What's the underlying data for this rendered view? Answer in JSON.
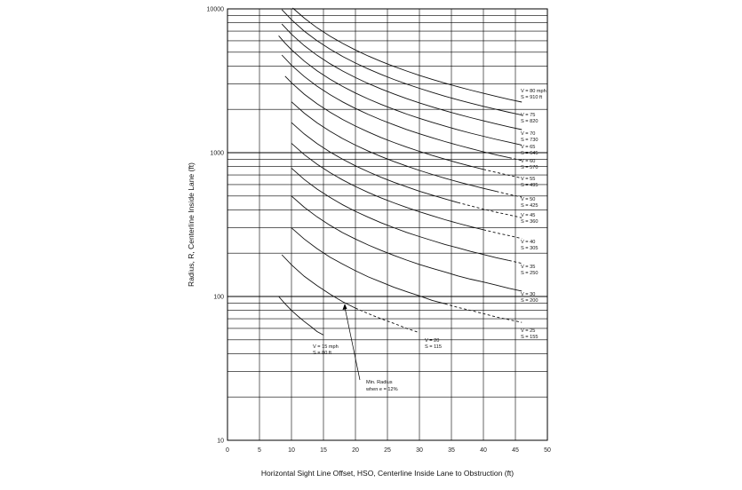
{
  "chart_data": {
    "type": "line",
    "title": "",
    "xlabel": "Horizontal Sight Line Offset, HSO, Centerline Inside Lane to Obstruction (ft)",
    "ylabel": "Radius, R, Centerline Inside Lane (ft)",
    "xlim": [
      0,
      50
    ],
    "ylim": [
      10,
      10000
    ],
    "yscale": "log",
    "grid": true,
    "x_ticks": [
      "0",
      "5",
      "10",
      "15",
      "20",
      "25",
      "30",
      "35",
      "40",
      "45",
      "50"
    ],
    "y_ticks": [
      "10",
      "100",
      "1000",
      "10000"
    ],
    "series": [
      {
        "name": "V = 15 mph S = 80 ft",
        "label_v": "V = 15 mph",
        "label_s": "S = 80 ft",
        "S": 80,
        "x": [
          8,
          9,
          10,
          11,
          12,
          13,
          14,
          15
        ],
        "y": [
          100,
          89,
          80,
          73,
          67,
          62,
          57,
          54
        ]
      },
      {
        "name": "V = 20 S = 115",
        "label_v": "V = 20",
        "label_s": "S = 115",
        "S": 115,
        "x": [
          8.5,
          10,
          12,
          14,
          16,
          18,
          20,
          22,
          24,
          26,
          28,
          30
        ],
        "y": [
          195,
          166,
          138,
          119,
          104,
          92,
          83,
          76,
          70,
          65,
          60,
          56
        ]
      },
      {
        "name": "V = 25 S = 155",
        "label_v": "V = 25",
        "label_s": "S = 155",
        "S": 155,
        "x": [
          10,
          12,
          14,
          16,
          18,
          20,
          22,
          24,
          26,
          28,
          30,
          32,
          34,
          36,
          38,
          40,
          42,
          44,
          46
        ],
        "y": [
          300,
          251,
          215,
          188,
          168,
          151,
          137,
          126,
          116,
          108,
          101,
          94,
          89,
          84,
          80,
          76,
          72,
          69,
          66
        ]
      },
      {
        "name": "V = 30 S = 200",
        "label_v": "V = 30",
        "label_s": "S = 200",
        "S": 200,
        "x": [
          10,
          12,
          14,
          16,
          18,
          20,
          22,
          24,
          26,
          28,
          30,
          32,
          34,
          36,
          38,
          40,
          42,
          44,
          46
        ],
        "y": [
          500,
          417,
          358,
          313,
          278,
          251,
          228,
          209,
          193,
          179,
          167,
          157,
          148,
          139,
          132,
          126,
          120,
          114,
          109
        ]
      },
      {
        "name": "V = 35 S = 250",
        "label_v": "V = 35",
        "label_s": "S = 250",
        "S": 250,
        "x": [
          10,
          12,
          14,
          16,
          18,
          20,
          22,
          24,
          26,
          28,
          30,
          32,
          34,
          36,
          38,
          40,
          42,
          44,
          46
        ],
        "y": [
          781,
          651,
          558,
          489,
          434,
          391,
          356,
          326,
          301,
          279,
          261,
          245,
          230,
          218,
          206,
          196,
          186,
          178,
          170
        ]
      },
      {
        "name": "V = 40 S = 305",
        "label_v": "V = 40",
        "label_s": "S = 305",
        "S": 305,
        "x": [
          10,
          12,
          14,
          16,
          18,
          20,
          22,
          24,
          26,
          28,
          30,
          32,
          34,
          36,
          38,
          40,
          42,
          44,
          46
        ],
        "y": [
          1163,
          969,
          831,
          727,
          646,
          582,
          529,
          485,
          448,
          416,
          388,
          364,
          342,
          323,
          306,
          291,
          277,
          265,
          253
        ]
      },
      {
        "name": "V = 45 S = 360",
        "label_v": "V = 45",
        "label_s": "S = 360",
        "S": 360,
        "x": [
          10,
          12,
          14,
          16,
          18,
          20,
          22,
          24,
          26,
          28,
          30,
          32,
          34,
          36,
          38,
          40,
          42,
          44,
          46
        ],
        "y": [
          1620,
          1350,
          1157,
          1013,
          900,
          810,
          737,
          675,
          623,
          579,
          540,
          507,
          477,
          450,
          427,
          405,
          386,
          369,
          353
        ]
      },
      {
        "name": "V = 50 S = 425",
        "label_v": "V = 50",
        "label_s": "S = 425",
        "S": 425,
        "x": [
          10,
          12,
          14,
          16,
          18,
          20,
          22,
          24,
          26,
          28,
          30,
          32,
          34,
          36,
          38,
          40,
          42,
          44,
          46
        ],
        "y": [
          2258,
          1881,
          1613,
          1411,
          1254,
          1129,
          1026,
          941,
          869,
          807,
          753,
          706,
          664,
          627,
          594,
          565,
          538,
          513,
          491
        ]
      },
      {
        "name": "V = 55 S = 495",
        "label_v": "V = 55",
        "label_s": "S = 495",
        "S": 495,
        "x": [
          9,
          10,
          12,
          14,
          16,
          18,
          20,
          22,
          24,
          26,
          28,
          30,
          32,
          34,
          36,
          38,
          40,
          42,
          44,
          46
        ],
        "y": [
          3403,
          3063,
          2552,
          2188,
          1914,
          1702,
          1532,
          1392,
          1276,
          1178,
          1094,
          1021,
          957,
          901,
          851,
          806,
          766,
          729,
          696,
          666
        ]
      },
      {
        "name": "V = 60 S = 570",
        "label_v": "V = 60",
        "label_s": "S = 570",
        "S": 570,
        "x": [
          8.5,
          10,
          12,
          14,
          16,
          18,
          20,
          22,
          24,
          26,
          28,
          30,
          32,
          34,
          36,
          38,
          40,
          42,
          44,
          46
        ],
        "y": [
          4778,
          4061,
          3384,
          2901,
          2538,
          2256,
          2031,
          1846,
          1692,
          1562,
          1450,
          1354,
          1269,
          1194,
          1128,
          1069,
          1015,
          967,
          923,
          883
        ]
      },
      {
        "name": "V = 65 S = 645",
        "label_v": "V = 65",
        "label_s": "S = 645",
        "S": 645,
        "x": [
          8,
          9,
          10,
          12,
          14,
          16,
          18,
          20,
          22,
          24,
          26,
          28,
          30,
          32,
          34,
          36,
          38,
          40,
          42,
          44,
          46
        ],
        "y": [
          6500,
          5778,
          5200,
          4333,
          3714,
          3250,
          2889,
          2600,
          2364,
          2167,
          2000,
          1857,
          1733,
          1625,
          1529,
          1444,
          1368,
          1300,
          1238,
          1182,
          1130
        ]
      },
      {
        "name": "V = 70 S = 730",
        "label_v": "V = 70",
        "label_s": "S = 730",
        "S": 730,
        "x": [
          8.5,
          10,
          12,
          14,
          16,
          18,
          20,
          22,
          24,
          26,
          28,
          30,
          32,
          34,
          36,
          38,
          40,
          42,
          44,
          46
        ],
        "y": [
          7838,
          6662,
          5551,
          4758,
          4163,
          3700,
          3330,
          3027,
          2775,
          2561,
          2378,
          2220,
          2081,
          1959,
          1850,
          1752,
          1665,
          1585,
          1513,
          1447
        ]
      },
      {
        "name": "V = 75 S = 820",
        "label_v": "V = 75",
        "label_s": "S = 820",
        "S": 820,
        "x": [
          8.5,
          10,
          12,
          14,
          16,
          18,
          20,
          22,
          24,
          26,
          28,
          30,
          32,
          34,
          36,
          38,
          40,
          42,
          44,
          46
        ],
        "y": [
          9889,
          8406,
          7004,
          6003,
          5253,
          4669,
          4202,
          3820,
          3502,
          3232,
          3001,
          2801,
          2626,
          2471,
          2334,
          2211,
          2100,
          2000,
          1909,
          1826
        ]
      },
      {
        "name": "V = 80 mph S = 910 ft",
        "label_v": "V = 80 mph",
        "label_s": "S = 910 ft",
        "S": 910,
        "x": [
          10.2,
          12,
          14,
          16,
          18,
          20,
          22,
          24,
          26,
          28,
          30,
          32,
          34,
          36,
          38,
          40,
          42,
          44,
          46
        ],
        "y": [
          10149,
          8626,
          7393,
          6469,
          5750,
          5175,
          4704,
          4312,
          3980,
          3696,
          3449,
          3233,
          3043,
          2874,
          2723,
          2587,
          2463,
          2351,
          2249
        ]
      }
    ],
    "annotations": [
      {
        "text_line1": "Min. Radius",
        "text_line2": "when e = 12%"
      }
    ]
  }
}
